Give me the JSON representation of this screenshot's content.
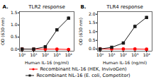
{
  "chart_data": [
    {
      "type": "line",
      "title": "TLR2 response",
      "annotations": [
        "A."
      ],
      "xlabel": "Human IL-16 (ng/ml)",
      "ylabel": "OD (630 nm)",
      "log": "x",
      "grid": false,
      "legend": "bottom",
      "x": [
        1,
        10,
        100,
        1000,
        10000
      ],
      "xlim": [
        0.6,
        30000
      ],
      "xticks": [
        {
          "value": 1,
          "label": "10⁰"
        },
        {
          "value": 10,
          "label": "10¹"
        },
        {
          "value": 100,
          "label": "10²"
        },
        {
          "value": 1000,
          "label": "10³"
        },
        {
          "value": 10000,
          "label": "10⁴"
        }
      ],
      "ylim": [
        -0.08,
        1.55
      ],
      "yticks": [
        {
          "value": 0,
          "label": "0.0"
        },
        0.5,
        {
          "value": 1,
          "label": "1.0"
        },
        1.5
      ],
      "series": [
        {
          "name": "Recombinant hIL-16 (HEK, InvivoGen)",
          "color": "#ff0000",
          "marker": "circle",
          "values": [
            0.01,
            0.005,
            0.005,
            0.005,
            -0.01
          ],
          "errors": [
            0.008,
            0.004,
            0.004,
            0.004,
            0.008
          ]
        },
        {
          "name": "Recombinant hIL-16 (E. coli, Competitor)",
          "color": "#1a1a1a",
          "marker": "square",
          "values": [
            0.005,
            0.005,
            0.1,
            0.8,
            1.28
          ],
          "errors": [
            0.005,
            0.005,
            0.015,
            0.04,
            0.06
          ]
        }
      ]
    },
    {
      "type": "line",
      "title": "TLR4 response",
      "annotations": [
        "B."
      ],
      "xlabel": "Human IL-16 (ng/ml)",
      "ylabel": "OD (630 nm)",
      "log": "x",
      "grid": false,
      "legend": "bottom",
      "x": [
        1,
        10,
        100,
        1000,
        10000
      ],
      "xlim": [
        0.6,
        30000
      ],
      "xticks": [
        {
          "value": 1,
          "label": "10⁰"
        },
        {
          "value": 10,
          "label": "10¹"
        },
        {
          "value": 100,
          "label": "10²"
        },
        {
          "value": 1000,
          "label": "10³"
        },
        {
          "value": 10000,
          "label": "10⁴"
        }
      ],
      "ylim": [
        -0.12,
        2.15
      ],
      "yticks": [
        {
          "value": 0,
          "label": "0.0"
        },
        0.5,
        {
          "value": 1,
          "label": "1.0"
        },
        1.5,
        {
          "value": 2,
          "label": "2.0"
        }
      ],
      "series": [
        {
          "name": "Recombinant hIL-16 (HEK, InvivoGen)",
          "color": "#ff0000",
          "marker": "circle",
          "values": [
            0.01,
            0.005,
            0.005,
            0.005,
            -0.01
          ],
          "errors": [
            0.008,
            0.004,
            0.004,
            0.004,
            0.008
          ]
        },
        {
          "name": "Recombinant hIL-16 (E. coli, Competitor)",
          "color": "#1a1a1a",
          "marker": "square",
          "values": [
            0.005,
            0.1,
            0.35,
            1.3,
            1.82
          ],
          "errors": [
            0.005,
            0.025,
            0.08,
            0.1,
            0.07
          ]
        }
      ]
    }
  ]
}
